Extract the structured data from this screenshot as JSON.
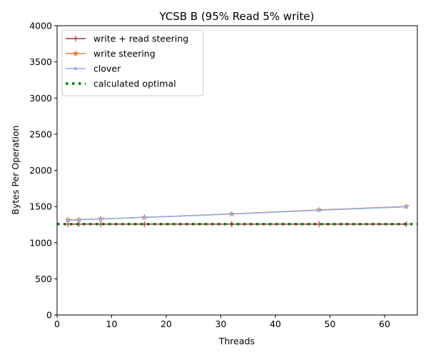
{
  "chart_data": {
    "type": "line",
    "title": "YCSB B (95% Read 5% write)",
    "xlabel": "Threads",
    "ylabel": "Bytes Per Operation",
    "xlim": [
      0,
      66
    ],
    "ylim": [
      0,
      4000
    ],
    "x_ticks": [
      0,
      10,
      20,
      30,
      40,
      50,
      60
    ],
    "y_ticks": [
      0,
      500,
      1000,
      1500,
      2000,
      2500,
      3000,
      3500,
      4000
    ],
    "grid": false,
    "legend_position": "upper-left",
    "series": [
      {
        "name": "write + read steering",
        "color": "#c0284b",
        "marker": "plus",
        "line_style": "solid",
        "x": [
          2,
          4,
          8,
          16,
          32,
          48,
          64
        ],
        "y": [
          1257,
          1257,
          1257,
          1257,
          1257,
          1257,
          1257
        ]
      },
      {
        "name": "write steering",
        "color": "#f07b3f",
        "marker": "star",
        "line_style": "solid",
        "x": [
          2,
          4,
          8,
          16,
          32,
          48,
          64
        ],
        "y": [
          1315,
          1318,
          1330,
          1350,
          1397,
          1453,
          1500
        ]
      },
      {
        "name": "clover",
        "color": "#8fb4e8",
        "marker": "point",
        "line_style": "solid",
        "x": [
          2,
          4,
          8,
          16,
          32,
          48,
          64
        ],
        "y": [
          1310,
          1315,
          1328,
          1348,
          1395,
          1448,
          1495
        ]
      },
      {
        "name": "calculated optimal",
        "color": "#008000",
        "marker": "none",
        "line_style": "dotted",
        "x": [
          0,
          66
        ],
        "y": [
          1257,
          1257
        ]
      }
    ]
  }
}
